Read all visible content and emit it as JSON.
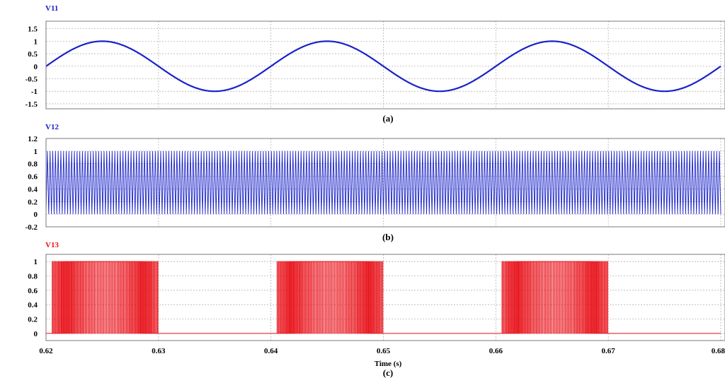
{
  "chart_data": [
    {
      "type": "line",
      "title": "V11",
      "caption": "(a)",
      "color": "#1a22c8",
      "xlim": [
        0.62,
        0.68
      ],
      "ylim": [
        -1.7,
        1.8
      ],
      "yticks": [
        "1.5",
        "1",
        "0.5",
        "0",
        "-0.5",
        "-1",
        "-1.5"
      ],
      "ytick_values": [
        1.5,
        1,
        0.5,
        0,
        -0.5,
        -1,
        -1.5
      ],
      "grid": true,
      "series": [
        {
          "waveform": "sine",
          "amplitude": 1.0,
          "frequency_hz": 50,
          "phase_deg": 0
        }
      ]
    },
    {
      "type": "line",
      "title": "V12",
      "caption": "(b)",
      "color": "#1a22c8",
      "xlim": [
        0.62,
        0.68
      ],
      "ylim": [
        -0.2,
        1.2
      ],
      "yticks": [
        "1.2",
        "1",
        "0.8",
        "0.6",
        "0.4",
        "0.2",
        "0",
        "-0.2"
      ],
      "ytick_values": [
        1.2,
        1,
        0.8,
        0.6,
        0.4,
        0.2,
        0,
        -0.2
      ],
      "grid": true,
      "series": [
        {
          "waveform": "triangle carrier",
          "min": 0,
          "max": 1
        }
      ]
    },
    {
      "type": "line",
      "title": "V13",
      "caption": "(c)",
      "color": "#e8141c",
      "xlim": [
        0.62,
        0.68
      ],
      "ylim": [
        -0.1,
        1.1
      ],
      "yticks": [
        "1",
        "0.8",
        "0.6",
        "0.4",
        "0.2",
        "0"
      ],
      "ytick_values": [
        1,
        0.8,
        0.6,
        0.4,
        0.2,
        0
      ],
      "xticks": [
        "0.62",
        "0.63",
        "0.64",
        "0.65",
        "0.66",
        "0.67",
        "0.68"
      ],
      "xtick_values": [
        0.62,
        0.63,
        0.64,
        0.65,
        0.66,
        0.67,
        0.68
      ],
      "xlabel": "Time (s)",
      "grid": true,
      "series": [
        {
          "waveform": "PWM pulses",
          "min": 0,
          "max": 1,
          "active_intervals": [
            [
              0.6205,
              0.63
            ],
            [
              0.6405,
              0.65
            ],
            [
              0.6605,
              0.67
            ]
          ]
        }
      ]
    }
  ]
}
